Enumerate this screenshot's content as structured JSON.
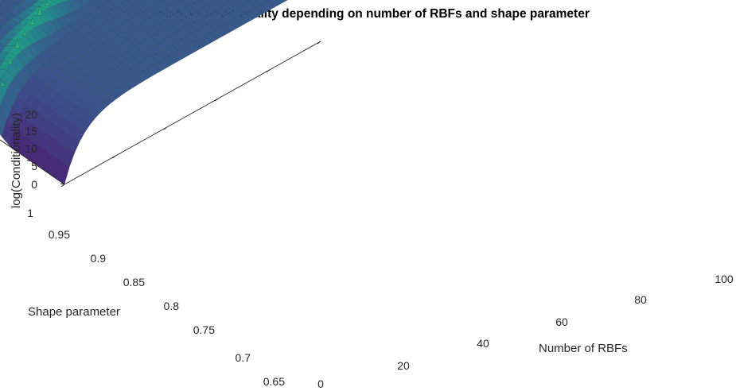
{
  "chart_data": {
    "type": "surface",
    "title": "Matrix conditionality depending on number of RBFs and shape parameter",
    "xlabel": "Number of RBFs",
    "ylabel": "Shape parameter",
    "zlabel": "log(Conditionality)",
    "x_ticks": [
      "0",
      "20",
      "40",
      "60",
      "80",
      "100"
    ],
    "y_ticks": [
      "0.65",
      "0.7",
      "0.75",
      "0.8",
      "0.85",
      "0.9",
      "0.95",
      "1"
    ],
    "z_ticks": [
      "0",
      "5",
      "10",
      "15",
      "20"
    ],
    "xlim": [
      0,
      100
    ],
    "ylim": [
      0.65,
      1.0
    ],
    "zlim": [
      0,
      20
    ],
    "colormap": "viridis",
    "grid": true,
    "surface_description_values": {
      "plateau_log_cond": 18,
      "low_n_log_cond": 0,
      "ridge_peak_log_cond_range": [
        17,
        20
      ]
    }
  },
  "colors": {
    "viridis": [
      "#440154",
      "#3b528b",
      "#21918c",
      "#1f7a6a",
      "#5ec962"
    ],
    "grid": "#dedede",
    "axis": "#262626"
  }
}
